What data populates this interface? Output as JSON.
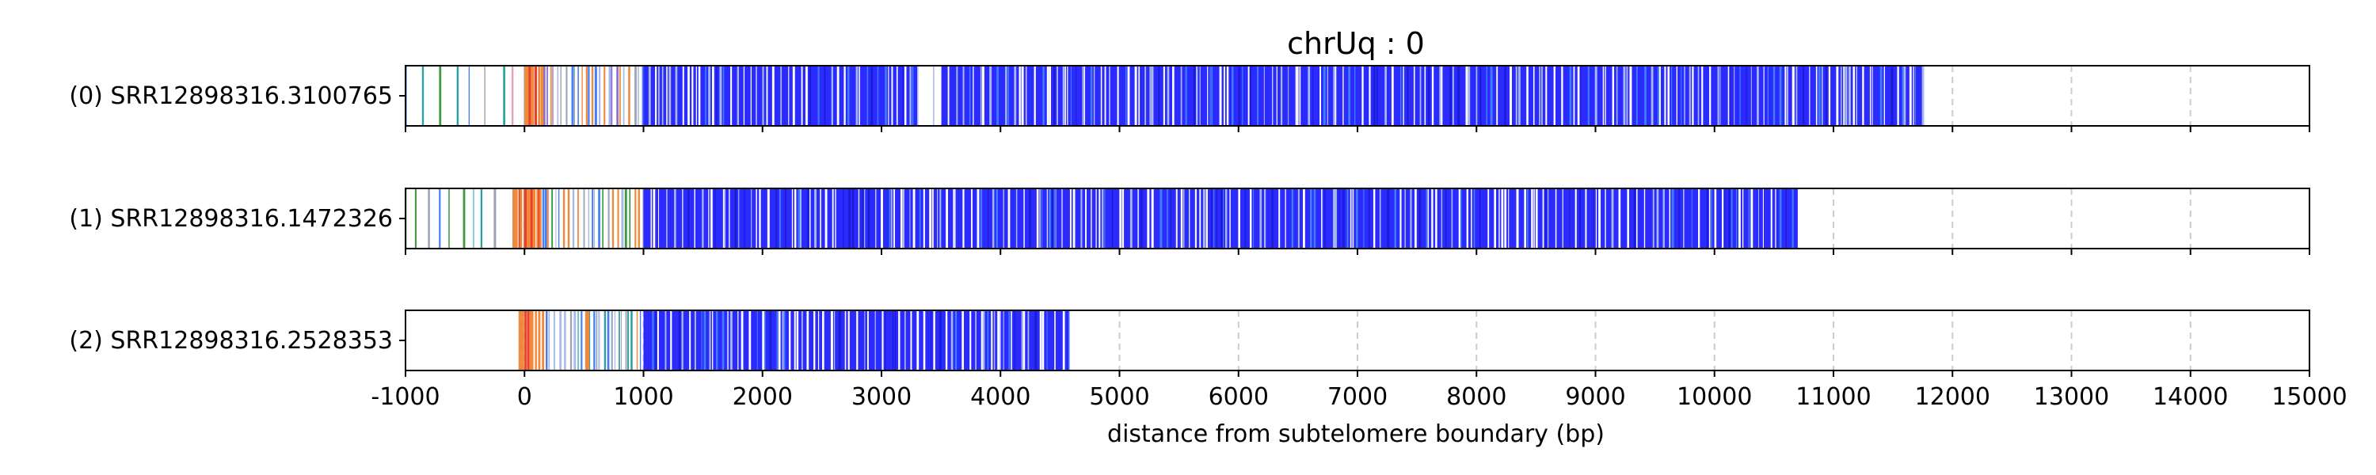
{
  "chart_data": {
    "type": "read-track",
    "title": "chrUq : 0",
    "xlabel": "distance from subtelomere boundary (bp)",
    "xlim": [
      -1000,
      15000
    ],
    "xticks": [
      -1000,
      0,
      1000,
      2000,
      3000,
      4000,
      5000,
      6000,
      7000,
      8000,
      9000,
      10000,
      11000,
      12000,
      13000,
      14000,
      15000
    ],
    "grid": {
      "axis": "x",
      "style": "dashed",
      "color": "#cccccc"
    },
    "colors": {
      "dominant": "#2b2bff",
      "alt_blue": "#3f7fff",
      "light_blue": "#a8b8ec",
      "red": "#e8402a",
      "orange": "#f08a3a",
      "green": "#3c9a3c",
      "pink": "#e4a0c0",
      "gray": "#9aa3b5",
      "purple": "#8a6fd1",
      "teal": "#2aa0a0"
    },
    "reads": [
      {
        "label": "(0) SRR12898316.3100765",
        "start": -1000,
        "end": 11750,
        "gap": [
          3300,
          3500
        ],
        "segments": [
          {
            "from": -1000,
            "to": 0,
            "density": "sparse",
            "palette": [
              "green",
              "gray",
              "pink",
              "alt_blue",
              "teal"
            ]
          },
          {
            "from": 0,
            "to": 160,
            "density": "dense",
            "palette": [
              "red",
              "orange"
            ]
          },
          {
            "from": 160,
            "to": 1000,
            "density": "medium",
            "palette": [
              "light_blue",
              "purple",
              "gray",
              "alt_blue",
              "orange"
            ]
          },
          {
            "from": 1000,
            "to": 11750,
            "density": "dense",
            "palette": [
              "dominant"
            ]
          }
        ]
      },
      {
        "label": "(1) SRR12898316.1472326",
        "start": -1000,
        "end": 10700,
        "gap": null,
        "segments": [
          {
            "from": -1000,
            "to": -100,
            "density": "sparse",
            "palette": [
              "green",
              "gray",
              "alt_blue",
              "teal"
            ]
          },
          {
            "from": -100,
            "to": 150,
            "density": "dense",
            "palette": [
              "red",
              "orange"
            ]
          },
          {
            "from": 150,
            "to": 1000,
            "density": "medium",
            "palette": [
              "light_blue",
              "green",
              "orange",
              "gray",
              "alt_blue"
            ]
          },
          {
            "from": 1000,
            "to": 10700,
            "density": "dense",
            "palette": [
              "dominant"
            ]
          }
        ]
      },
      {
        "label": "(2) SRR12898316.2528353",
        "start": -50,
        "end": 4580,
        "gap": null,
        "segments": [
          {
            "from": -50,
            "to": 180,
            "density": "dense",
            "palette": [
              "red",
              "orange"
            ]
          },
          {
            "from": 180,
            "to": 1000,
            "density": "medium",
            "palette": [
              "light_blue",
              "teal",
              "gray",
              "alt_blue",
              "orange"
            ]
          },
          {
            "from": 1000,
            "to": 4580,
            "density": "dense",
            "palette": [
              "dominant"
            ]
          }
        ]
      }
    ]
  }
}
